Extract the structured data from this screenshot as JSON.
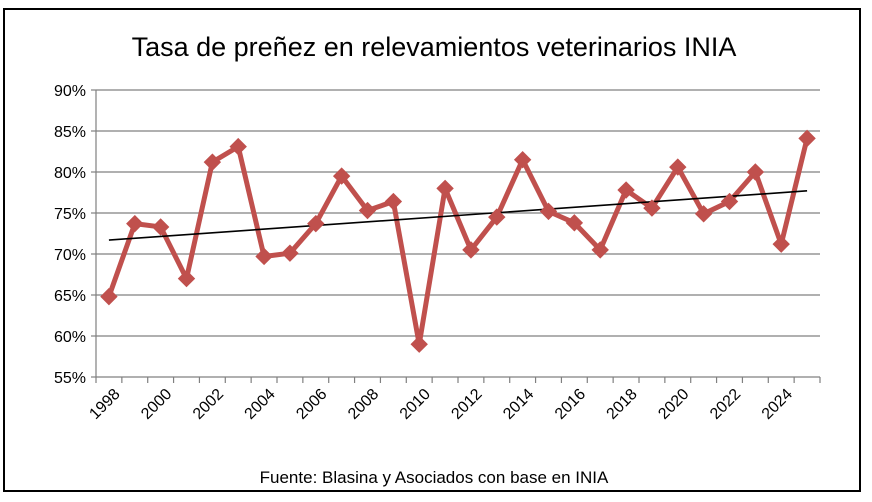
{
  "chart_data": {
    "type": "line",
    "title": "Tasa de preñez en relevamientos veterinarios INIA",
    "source_note": "Fuente: Blasina y Asociados con base en INIA",
    "x": [
      1998,
      1999,
      2000,
      2001,
      2002,
      2003,
      2004,
      2005,
      2006,
      2007,
      2008,
      2009,
      2010,
      2011,
      2012,
      2013,
      2014,
      2015,
      2016,
      2017,
      2018,
      2019,
      2020,
      2021,
      2022,
      2023,
      2024,
      2025
    ],
    "x_tick_labels": [
      "1998",
      "2000",
      "2002",
      "2004",
      "2006",
      "2008",
      "2010",
      "2012",
      "2014",
      "2016",
      "2018",
      "2020",
      "2022",
      "2024"
    ],
    "y_tick_labels": [
      "90%",
      "85%",
      "80%",
      "75%",
      "70%",
      "65%",
      "60%",
      "55%"
    ],
    "ylim": [
      55,
      90
    ],
    "y_ticks": [
      55,
      60,
      65,
      70,
      75,
      80,
      85,
      90
    ],
    "series": [
      {
        "values": [
          64.8,
          73.7,
          73.3,
          67.0,
          81.2,
          83.1,
          69.7,
          70.1,
          73.7,
          79.5,
          75.3,
          76.4,
          59.0,
          78.0,
          70.5,
          74.5,
          81.5,
          75.2,
          73.8,
          70.5,
          77.8,
          75.6,
          80.6,
          74.9,
          76.4,
          80.0,
          71.2,
          84.1
        ],
        "color": "#c0504d",
        "marker": "diamond"
      }
    ],
    "trendline": {
      "start": 71.7,
      "end": 77.7,
      "color": "#000000"
    },
    "grid": true,
    "gridline_color": "#808080",
    "legend": "none"
  }
}
